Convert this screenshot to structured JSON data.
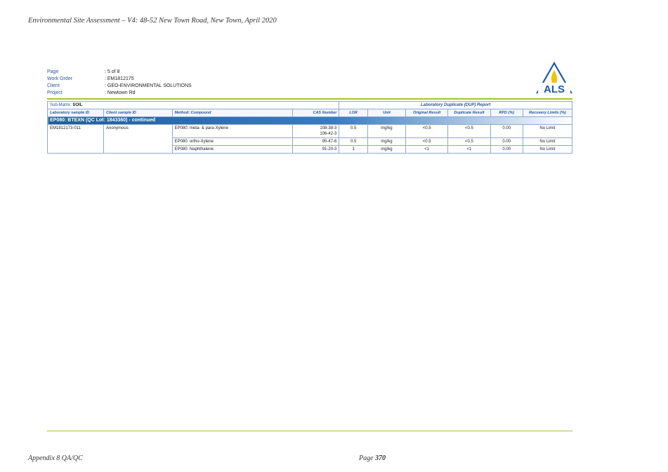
{
  "header": {
    "title": "Environmental Site Assessment – V4: 48-52 New Town Road, New Town, April 2020"
  },
  "meta": [
    {
      "label": "Page",
      "value": ": 5 of 8"
    },
    {
      "label": "Work Order",
      "value": ": EM1812175"
    },
    {
      "label": "Client",
      "value": ": GEO-ENVIRONMENTAL SOLUTIONS"
    },
    {
      "label": "Project",
      "value": ": Newtown Rd"
    }
  ],
  "logo": {
    "text": "ALS",
    "color": "#1e5aa8",
    "flame": "#f2c200"
  },
  "report": {
    "sub_matrix_label": "Sub-Matrix:",
    "sub_matrix_value": "SOIL",
    "section_title": "Laboratory Duplicate (DUP) Report",
    "columns": [
      "Laboratory sample ID",
      "Client sample ID",
      "Method: Compound",
      "CAS Number",
      "LOR",
      "Unit",
      "Original Result",
      "Duplicate Result",
      "RPD (%)",
      "Recovery Limits (%)"
    ],
    "group_title": "EP080: BTEXN (QC Lot: 1843360) - continued",
    "lab_sample_id": "EM1812173-011",
    "client_sample_id": "Anonymous",
    "rows": [
      {
        "compound": "EP080: meta- & para-Xylene",
        "cas": "108-38-3",
        "cas2": "106-42-3",
        "lor": "0.5",
        "unit": "mg/kg",
        "original": "<0.5",
        "duplicate": "<0.5",
        "rpd": "0.00",
        "limits": "No Limit"
      },
      {
        "compound": "EP080: ortho-Xylene",
        "cas": "95-47-6",
        "lor": "0.5",
        "unit": "mg/kg",
        "original": "<0.5",
        "duplicate": "<0.5",
        "rpd": "0.00",
        "limits": "No Limit"
      },
      {
        "compound": "EP080: Naphthalene",
        "cas": "91-20-3",
        "lor": "1",
        "unit": "mg/kg",
        "original": "<1",
        "duplicate": "<1",
        "rpd": "0.00",
        "limits": "No Limit"
      }
    ]
  },
  "footer": {
    "left": "Appendix 8 QA/QC",
    "page_label": "Page",
    "page_number": "370"
  },
  "colors": {
    "accent_line": "#a8bf3a",
    "header_blue": "#2a55a0",
    "group_bar": "#1f5e9c"
  }
}
